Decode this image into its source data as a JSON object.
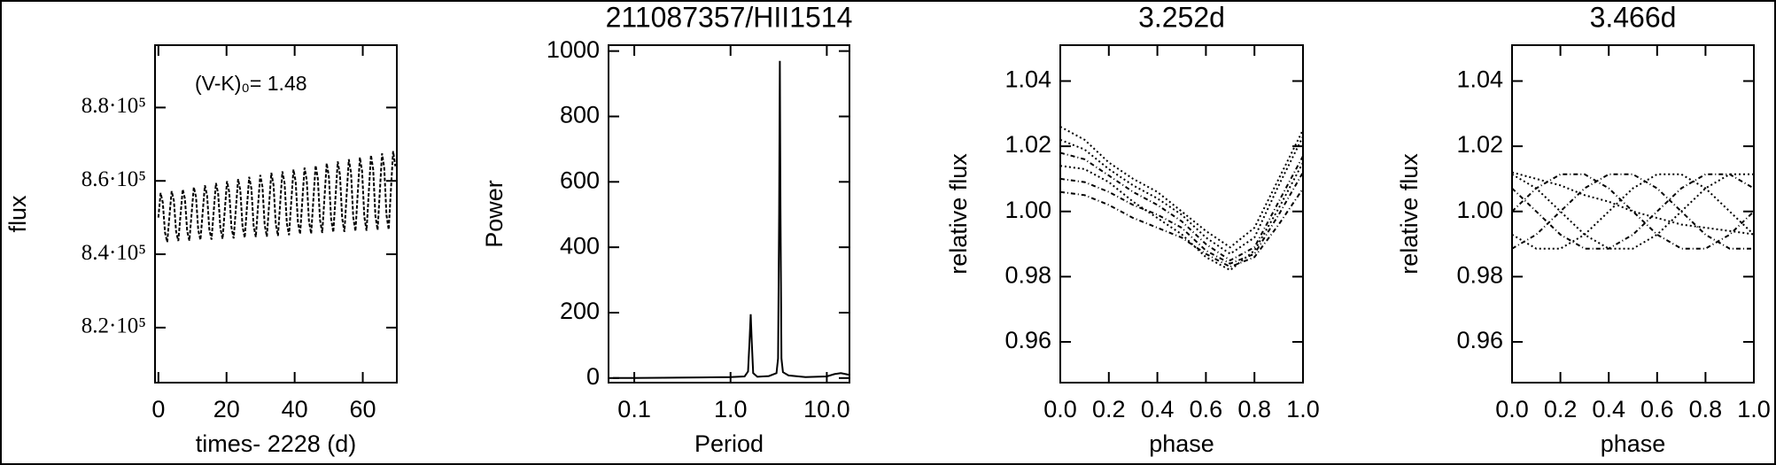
{
  "chart_data": [
    {
      "type": "line",
      "xlabel": "times- 2228 (d)",
      "ylabel": "flux",
      "annotation": "(V-K)₀= 1.48",
      "color": "#000000",
      "xlim": [
        -1,
        70
      ],
      "xticks": [
        0,
        20,
        40,
        60
      ],
      "ylim": [
        805000,
        897000
      ],
      "yticks": [
        {
          "value": 820000,
          "label": "8.2·10⁵"
        },
        {
          "value": 840000,
          "label": "8.4·10⁵"
        },
        {
          "value": 860000,
          "label": "8.6·10⁵"
        },
        {
          "value": 880000,
          "label": "8.8·10⁵"
        }
      ],
      "x": [
        0,
        0.65,
        1.3,
        1.95,
        2.6,
        3.25,
        3.9,
        4.55,
        5.2,
        5.85,
        6.5,
        7.15,
        7.8,
        8.45,
        9.1,
        9.75,
        10.4,
        11.05,
        11.7,
        12.35,
        13,
        13.65,
        14.3,
        14.95,
        15.6,
        16.25,
        16.9,
        17.55,
        18.2,
        18.85,
        19.5,
        20.15,
        20.8,
        21.45,
        22.1,
        22.75,
        23.4,
        24.05,
        24.7,
        25.35,
        26,
        26.65,
        27.3,
        27.95,
        28.6,
        29.25,
        29.9,
        30.55,
        31.2,
        31.85,
        32.5,
        33.15,
        33.8,
        34.45,
        35.1,
        35.75,
        36.4,
        37.05,
        37.7,
        38.35,
        39,
        39.65,
        40.3,
        40.95,
        41.6,
        42.25,
        42.9,
        43.55,
        44.2,
        44.85,
        45.5,
        46.15,
        46.8,
        47.45,
        48.1,
        48.75,
        49.4,
        50.05,
        50.7,
        51.35,
        52,
        52.65,
        53.3,
        53.95,
        54.6,
        55.25,
        55.9,
        56.55,
        57.2,
        57.85,
        58.5,
        59.15,
        59.8,
        60.45,
        61.1,
        61.75,
        62.4,
        63.05,
        63.7,
        64.35,
        65,
        65.65,
        66.3,
        66.95,
        67.6,
        68.25,
        68.9,
        69.55
      ],
      "values": [
        850000,
        856700,
        854100,
        845900,
        843300,
        850400,
        857200,
        854600,
        846200,
        843600,
        850700,
        857700,
        855100,
        846300,
        843700,
        851100,
        858300,
        855600,
        846600,
        843900,
        851400,
        858800,
        856000,
        846800,
        844000,
        851800,
        859400,
        856500,
        847100,
        844200,
        852100,
        859900,
        856900,
        847300,
        844300,
        852500,
        860500,
        857400,
        847600,
        844500,
        852900,
        861100,
        857900,
        847800,
        844700,
        853200,
        861600,
        858400,
        848000,
        844800,
        853600,
        862200,
        858900,
        848300,
        845000,
        853900,
        862600,
        859300,
        848500,
        845200,
        854300,
        863100,
        859800,
        848800,
        845500,
        854600,
        863600,
        860200,
        849000,
        845600,
        855000,
        864200,
        860700,
        849300,
        845800,
        855400,
        864800,
        861200,
        849600,
        846000,
        855700,
        865300,
        861600,
        849800,
        846100,
        856100,
        865900,
        862200,
        850000,
        846300,
        856400,
        866400,
        862600,
        850200,
        846400,
        856800,
        867000,
        863100,
        850500,
        846600,
        857100,
        867500,
        863500,
        850700,
        846700,
        857500,
        868100,
        864000
      ]
    },
    {
      "type": "line",
      "title": "211087357/HII1514",
      "xlabel": "Period",
      "ylabel": "Power",
      "xscale": "log",
      "color": "#000000",
      "xlim": [
        0.054,
        17.2
      ],
      "xticks": [
        0.1,
        {
          "value": 1,
          "label": "1.0"
        },
        {
          "value": 10,
          "label": "10.0"
        }
      ],
      "ylim": [
        -14,
        1018
      ],
      "yticks": [
        0,
        200,
        400,
        600,
        800,
        1000
      ],
      "x": [
        0.06,
        0.1,
        0.2,
        0.5,
        1.0,
        1.4,
        1.52,
        1.58,
        1.62,
        1.66,
        1.72,
        1.9,
        2.5,
        3.0,
        3.12,
        3.2,
        3.25,
        3.3,
        3.38,
        3.5,
        4.0,
        6,
        10,
        12,
        14,
        17
      ],
      "values": [
        0,
        0,
        1,
        2,
        3,
        5,
        20,
        120,
        195,
        110,
        15,
        4,
        6,
        15,
        60,
        500,
        970,
        520,
        60,
        18,
        8,
        3,
        5,
        12,
        15,
        10
      ]
    },
    {
      "type": "line",
      "title": "3.252d",
      "xlabel": "phase",
      "ylabel": "relative flux",
      "xlim": [
        0,
        1
      ],
      "xticks": [
        {
          "value": 0,
          "label": "0.0"
        },
        0.2,
        0.4,
        0.6,
        0.8,
        {
          "value": 1,
          "label": "1.0"
        }
      ],
      "ylim": [
        0.9475,
        1.051
      ],
      "yticks": [
        0.96,
        0.98,
        {
          "value": 1,
          "label": "1.00"
        },
        1.02,
        1.04
      ],
      "x": [
        0,
        0.1,
        0.2,
        0.3,
        0.4,
        0.5,
        0.6,
        0.7,
        0.8,
        0.9,
        1
      ],
      "series": [
        {
          "color": "#000000",
          "values": [
            1.018,
            1.016,
            1.011,
            1.006,
            1.002,
            0.997,
            0.99,
            0.985,
            0.989,
            1.003,
            1.017
          ]
        },
        {
          "color": "#000000",
          "values": [
            1.022,
            1.019,
            1.013,
            1.008,
            1.004,
            0.999,
            0.992,
            0.987,
            0.992,
            1.008,
            1.023
          ]
        },
        {
          "color": "#000000",
          "values": [
            1.01,
            1.009,
            1.006,
            1.002,
            0.999,
            0.995,
            0.988,
            0.984,
            0.987,
            0.999,
            1.012
          ]
        },
        {
          "color": "#000000",
          "values": [
            1.026,
            1.022,
            1.015,
            1.01,
            1.006,
            1.0,
            0.994,
            0.989,
            0.995,
            1.01,
            1.025
          ]
        },
        {
          "color": "#000000",
          "values": [
            1.006,
            1.005,
            1.002,
            0.998,
            0.995,
            0.992,
            0.987,
            0.983,
            0.986,
            0.996,
            1.007
          ]
        },
        {
          "color": "#000000",
          "values": [
            1.014,
            1.013,
            1.009,
            1.003,
            0.998,
            0.993,
            0.986,
            0.982,
            0.988,
            1.001,
            1.015
          ]
        }
      ]
    },
    {
      "type": "line",
      "title": "3.466d",
      "xlabel": "phase",
      "ylabel": "relative flux",
      "xlim": [
        0,
        1
      ],
      "xticks": [
        {
          "value": 0,
          "label": "0.0"
        },
        0.2,
        0.4,
        0.6,
        0.8,
        {
          "value": 1,
          "label": "1.0"
        }
      ],
      "ylim": [
        0.9475,
        1.051
      ],
      "yticks": [
        0.96,
        0.98,
        {
          "value": 1,
          "label": "1.00"
        },
        1.02,
        1.04
      ],
      "x": [
        0,
        0.1,
        0.2,
        0.3,
        0.4,
        0.5,
        0.6,
        0.7,
        0.8,
        0.9,
        1
      ],
      "series": [
        {
          "color": "#000000",
          "values": [
            1,
            1.0071,
            1.0114,
            1.0114,
            1.0071,
            1,
            0.9929,
            0.9886,
            0.9886,
            0.9929,
            1
          ]
        },
        {
          "color": "#000000",
          "values": [
            1.0114,
            1.0071,
            1,
            0.9929,
            0.9886,
            0.9886,
            0.9929,
            1,
            1.0071,
            1.0114,
            1.0114
          ]
        },
        {
          "color": "#000000",
          "values": [
            1.0071,
            1,
            0.9929,
            0.9886,
            0.9886,
            0.9929,
            1,
            1.0071,
            1.0114,
            1.0114,
            1.0071
          ]
        },
        {
          "color": "#000000",
          "values": [
            0.9929,
            0.9886,
            0.9886,
            0.9929,
            1,
            1.0071,
            1.0114,
            1.0114,
            1.0071,
            1,
            0.9929
          ]
        },
        {
          "color": "#000000",
          "values": [
            0.9886,
            0.9929,
            1,
            1.0071,
            1.0114,
            1.0114,
            1.0071,
            1,
            0.9929,
            0.9886,
            0.9886
          ]
        },
        {
          "color": "#000000",
          "values": [
            1.012,
            1.01,
            1.008,
            1.005,
            1.003,
            1.0,
            0.998,
            0.996,
            0.995,
            0.994,
            0.993
          ]
        }
      ]
    }
  ]
}
